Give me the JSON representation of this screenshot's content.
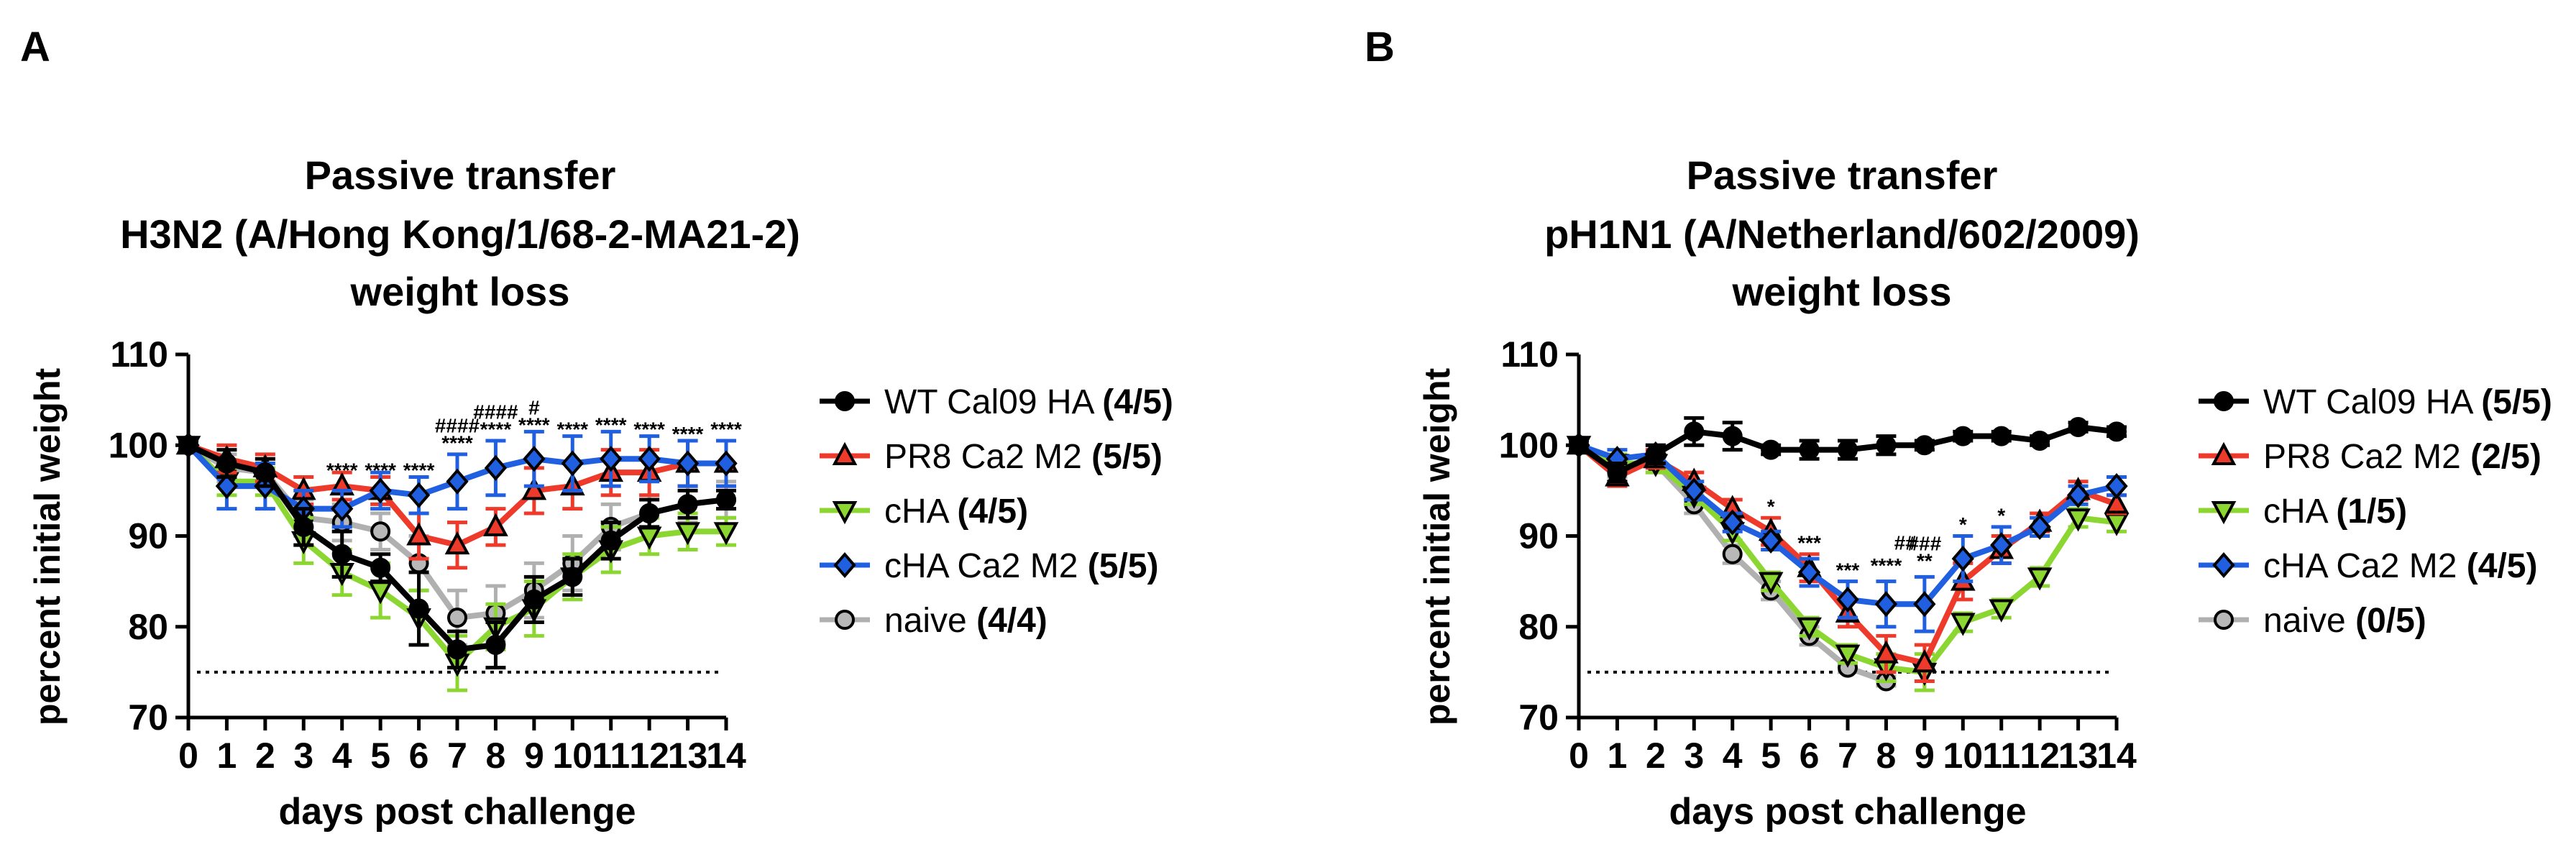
{
  "figure": {
    "panels": [
      {
        "letter": "A",
        "title_lines": [
          "Passive transfer",
          "H3N2 (A/Hong Kong/1/68-2-MA21-2)",
          "weight loss"
        ]
      },
      {
        "letter": "B",
        "title_lines": [
          "Passive transfer",
          "pH1N1 (A/Netherland/602/2009)",
          "weight loss"
        ]
      }
    ]
  },
  "colors": {
    "wt": "#000000",
    "pr8": "#ee3a2a",
    "cha": "#8cd632",
    "cha_ca2": "#1f5fe0",
    "naive": "#b0b0b0",
    "marker_face": "#b8b8b8"
  },
  "chart_data": [
    {
      "type": "line",
      "panel": "A",
      "title": "Passive transfer\nH3N2 (A/Hong Kong/1/68-2-MA21-2)\nweight loss",
      "xlabel": "days post challenge",
      "ylabel": "percent initial weight",
      "xlim": [
        0,
        14
      ],
      "ylim": [
        70,
        110
      ],
      "x": [
        0,
        1,
        2,
        3,
        4,
        5,
        6,
        7,
        8,
        9,
        10,
        11,
        12,
        13,
        14
      ],
      "xticks": [
        "0",
        "1",
        "2",
        "3",
        "4",
        "5",
        "6",
        "7",
        "8",
        "9",
        "10",
        "11",
        "12",
        "13",
        "14"
      ],
      "yticks": [
        "70",
        "80",
        "90",
        "100",
        "110"
      ],
      "threshold": 75,
      "grid": false,
      "legend_position": "right",
      "series": [
        {
          "key": "wt",
          "name": "WT Cal09 HA",
          "survival": "(4/5)",
          "marker": "circle",
          "values": [
            100,
            98,
            97,
            91,
            88,
            86.5,
            82,
            77.5,
            78,
            83,
            85.5,
            89.5,
            92.5,
            93.5,
            94
          ],
          "errors": [
            0.5,
            1.5,
            1.5,
            2,
            2.5,
            1.5,
            4,
            2,
            2.5,
            2.5,
            2,
            2,
            1.5,
            1.5,
            1
          ]
        },
        {
          "key": "pr8",
          "name": "PR8 Ca2 M2",
          "survival": "(5/5)",
          "marker": "triangle-up",
          "values": [
            100,
            98.5,
            97.5,
            95,
            95.5,
            95,
            90,
            89,
            91,
            95,
            95.5,
            97,
            97,
            98,
            98
          ],
          "errors": [
            0.5,
            1.5,
            1.5,
            1.5,
            1.5,
            1.5,
            2.5,
            2.5,
            2,
            2.5,
            2.5,
            2.5,
            2.5,
            2.5,
            2.5
          ]
        },
        {
          "key": "cha",
          "name": "cHA",
          "survival": "(4/5)",
          "marker": "triangle-down",
          "values": [
            100,
            96,
            96,
            89.5,
            86,
            84,
            81,
            76,
            80,
            82,
            85.5,
            88.5,
            90,
            90.5,
            90.5
          ],
          "errors": [
            0.5,
            1.5,
            1.5,
            2.5,
            2.5,
            3,
            3,
            3,
            2.5,
            3,
            2.5,
            2.5,
            2,
            2,
            1.5
          ]
        },
        {
          "key": "cha_ca2",
          "name": "cHA Ca2 M2",
          "survival": "(5/5)",
          "marker": "diamond",
          "values": [
            100,
            95.5,
            95.5,
            93,
            93,
            95,
            94.5,
            96,
            97.5,
            98.5,
            98,
            98.5,
            98.5,
            98,
            98
          ],
          "errors": [
            0.5,
            2.5,
            2.5,
            2,
            2,
            2,
            2,
            3,
            3,
            3,
            3,
            3,
            2.5,
            2.5,
            2.5
          ]
        },
        {
          "key": "naive",
          "name": "naive",
          "survival": "(4/4)",
          "marker": "circle",
          "values": [
            100,
            97.5,
            97,
            92,
            91.5,
            90.5,
            87,
            81,
            81.5,
            84,
            87,
            91,
            92.5,
            93.5,
            94
          ],
          "errors": [
            0.5,
            1.5,
            1.5,
            2,
            2,
            2,
            3,
            3,
            3,
            3,
            3,
            2.5,
            2,
            2,
            2
          ]
        }
      ],
      "annotations": [
        {
          "x": 4,
          "y": 96.5,
          "rows": [
            "****"
          ]
        },
        {
          "x": 5,
          "y": 96.5,
          "rows": [
            "****"
          ]
        },
        {
          "x": 6,
          "y": 96.5,
          "rows": [
            "****"
          ]
        },
        {
          "x": 7,
          "y": 99.5,
          "rows": [
            "####",
            "****"
          ]
        },
        {
          "x": 8,
          "y": 101,
          "rows": [
            "####",
            "****"
          ]
        },
        {
          "x": 9,
          "y": 101.5,
          "rows": [
            "#",
            "****"
          ]
        },
        {
          "x": 10,
          "y": 101,
          "rows": [
            "****"
          ]
        },
        {
          "x": 11,
          "y": 101.5,
          "rows": [
            "****"
          ]
        },
        {
          "x": 12,
          "y": 101,
          "rows": [
            "****"
          ]
        },
        {
          "x": 13,
          "y": 100.5,
          "rows": [
            "****"
          ]
        },
        {
          "x": 14,
          "y": 101,
          "rows": [
            "****"
          ]
        }
      ]
    },
    {
      "type": "line",
      "panel": "B",
      "title": "Passive transfer\npH1N1 (A/Netherland/602/2009)\nweight loss",
      "xlabel": "days post challenge",
      "ylabel": "percent initial weight",
      "xlim": [
        0,
        14
      ],
      "ylim": [
        70,
        110
      ],
      "x": [
        0,
        1,
        2,
        3,
        4,
        5,
        6,
        7,
        8,
        9,
        10,
        11,
        12,
        13,
        14
      ],
      "xticks": [
        "0",
        "1",
        "2",
        "3",
        "4",
        "5",
        "6",
        "7",
        "8",
        "9",
        "10",
        "11",
        "12",
        "13",
        "14"
      ],
      "yticks": [
        "70",
        "80",
        "90",
        "100",
        "110"
      ],
      "threshold": 75,
      "grid": false,
      "legend_position": "right",
      "series": [
        {
          "key": "wt",
          "name": "WT Cal09 HA",
          "survival": "(5/5)",
          "marker": "circle",
          "values": [
            100,
            97,
            99,
            101.5,
            101,
            99.5,
            99.5,
            99.5,
            100,
            100,
            101,
            101,
            100.5,
            102,
            101.5
          ],
          "errors": [
            0.5,
            1,
            1,
            1.5,
            1.5,
            0.5,
            1,
            1,
            1,
            0.5,
            0.5,
            0.5,
            0.5,
            0.5,
            0.5
          ]
        },
        {
          "key": "pr8",
          "name": "PR8 Ca2 M2",
          "survival": "(2/5)",
          "marker": "triangle-up",
          "values": [
            100,
            96.5,
            98.5,
            96,
            93,
            90.5,
            86.5,
            81.5,
            77,
            76,
            85,
            88.5,
            91.5,
            95,
            93.5
          ],
          "errors": [
            0.5,
            1,
            1,
            1,
            1,
            1.5,
            1.5,
            1.5,
            2,
            2,
            2,
            1.5,
            1,
            1,
            1
          ]
        },
        {
          "key": "cha",
          "name": "cHA",
          "survival": "(1/5)",
          "marker": "triangle-down",
          "values": [
            100,
            98,
            98,
            94.5,
            90.5,
            85,
            80,
            77,
            75.5,
            75,
            80.5,
            82,
            85.5,
            92,
            91.5
          ],
          "errors": [
            0.5,
            1,
            1,
            1,
            1,
            1,
            1,
            1,
            1.5,
            2,
            1,
            1,
            1,
            1,
            1
          ]
        },
        {
          "key": "cha_ca2",
          "name": "cHA Ca2 M2",
          "survival": "(4/5)",
          "marker": "diamond",
          "values": [
            100,
            98.5,
            99,
            95,
            91.5,
            89.5,
            86,
            83,
            82.5,
            82.5,
            87.5,
            89,
            91,
            94.5,
            95.5
          ],
          "errors": [
            0.5,
            1,
            1,
            1,
            1,
            1,
            1.5,
            2,
            2.5,
            3,
            2.5,
            2,
            1,
            1,
            1
          ]
        },
        {
          "key": "naive",
          "name": "naive",
          "survival": "(0/5)",
          "marker": "circle",
          "values": [
            100,
            97.5,
            98,
            93.5,
            88,
            84,
            79,
            75.5,
            74,
            null,
            null,
            null,
            null,
            null,
            null
          ],
          "errors": [
            0.5,
            1,
            1,
            1,
            1,
            1,
            1,
            0.5,
            0.5,
            null,
            null,
            null,
            null,
            null,
            null
          ]
        }
      ],
      "annotations": [
        {
          "x": 5,
          "y": 92.5,
          "rows": [
            "*"
          ]
        },
        {
          "x": 6,
          "y": 88.5,
          "rows": [
            "***"
          ]
        },
        {
          "x": 7,
          "y": 85.5,
          "rows": [
            "***"
          ]
        },
        {
          "x": 8,
          "y": 86,
          "rows": [
            "****"
          ]
        },
        {
          "x": 8.5,
          "y": 88.5,
          "rows": [
            "##"
          ]
        },
        {
          "x": 9,
          "y": 86.5,
          "rows": [
            "###",
            "**"
          ]
        },
        {
          "x": 10,
          "y": 90.5,
          "rows": [
            "*"
          ]
        },
        {
          "x": 11,
          "y": 91.5,
          "rows": [
            "*"
          ]
        }
      ]
    }
  ]
}
